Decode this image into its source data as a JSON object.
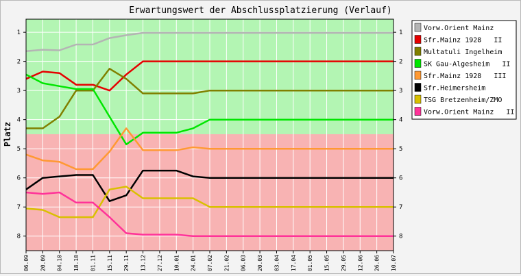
{
  "chart_data": {
    "type": "line",
    "title": "Erwartungswert der Abschlussplatzierung (Verlauf)",
    "ylabel": "Platz",
    "xlabel": "",
    "ylim": [
      0.55,
      8.5
    ],
    "y_reversed": true,
    "y_ticks": [
      1,
      2,
      3,
      4,
      5,
      6,
      7,
      8
    ],
    "bands": [
      {
        "from": 0.55,
        "to": 4.5,
        "color": "#b3f5b3"
      },
      {
        "from": 4.5,
        "to": 8.5,
        "color": "#f8b3b3"
      }
    ],
    "categories": [
      "06.09",
      "20.09",
      "04.10",
      "18.10",
      "01.11",
      "15.11",
      "29.11",
      "13.12",
      "27.12",
      "10.01",
      "24.01",
      "07.02",
      "21.02",
      "06.03",
      "20.03",
      "03.04",
      "17.04",
      "01.05",
      "15.05",
      "29.05",
      "12.06",
      "26.06",
      "10.07"
    ],
    "legend_position": "right",
    "series": [
      {
        "name": "Vorw.Orient Mainz",
        "color": "#b4b4b4",
        "values": [
          1.65,
          1.6,
          1.62,
          1.42,
          1.42,
          1.2,
          1.1,
          1.02,
          1.02,
          1.02,
          1.02,
          1.02,
          1.02,
          1.02,
          1.02,
          1.02,
          1.02,
          1.02,
          1.02,
          1.02,
          1.02,
          1.02,
          1.02
        ]
      },
      {
        "name": "Sfr.Mainz 1928   II",
        "color": "#e60000",
        "values": [
          2.6,
          2.35,
          2.4,
          2.8,
          2.8,
          3.0,
          2.45,
          2.0,
          2.0,
          2.0,
          2.0,
          2.0,
          2.0,
          2.0,
          2.0,
          2.0,
          2.0,
          2.0,
          2.0,
          2.0,
          2.0,
          2.0,
          2.0
        ]
      },
      {
        "name": "Multatuli Ingelheim",
        "color": "#808000",
        "values": [
          4.3,
          4.3,
          3.9,
          3.0,
          3.0,
          2.25,
          2.6,
          3.1,
          3.1,
          3.1,
          3.1,
          3.0,
          3.0,
          3.0,
          3.0,
          3.0,
          3.0,
          3.0,
          3.0,
          3.0,
          3.0,
          3.0,
          3.0
        ]
      },
      {
        "name": "SK Gau-Algesheim   II",
        "color": "#00e600",
        "values": [
          2.45,
          2.75,
          2.85,
          2.95,
          2.95,
          3.9,
          4.85,
          4.45,
          4.45,
          4.45,
          4.3,
          4.0,
          4.0,
          4.0,
          4.0,
          4.0,
          4.0,
          4.0,
          4.0,
          4.0,
          4.0,
          4.0,
          4.0
        ]
      },
      {
        "name": "Sfr.Mainz 1928   III",
        "color": "#ff9933",
        "values": [
          5.2,
          5.4,
          5.45,
          5.7,
          5.7,
          5.1,
          4.3,
          5.05,
          5.05,
          5.05,
          4.95,
          5.0,
          5.0,
          5.0,
          5.0,
          5.0,
          5.0,
          5.0,
          5.0,
          5.0,
          5.0,
          5.0,
          5.0
        ]
      },
      {
        "name": "Sfr.Heimersheim",
        "color": "#000000",
        "values": [
          6.4,
          6.0,
          5.95,
          5.9,
          5.9,
          6.8,
          6.6,
          5.75,
          5.75,
          5.75,
          5.95,
          6.0,
          6.0,
          6.0,
          6.0,
          6.0,
          6.0,
          6.0,
          6.0,
          6.0,
          6.0,
          6.0,
          6.0
        ]
      },
      {
        "name": "TSG Bretzenheim/ZMO",
        "color": "#d9c000",
        "values": [
          7.05,
          7.1,
          7.35,
          7.35,
          7.35,
          6.4,
          6.3,
          6.7,
          6.7,
          6.7,
          6.7,
          7.0,
          7.0,
          7.0,
          7.0,
          7.0,
          7.0,
          7.0,
          7.0,
          7.0,
          7.0,
          7.0,
          7.0
        ]
      },
      {
        "name": "Vorw.Orient Mainz   II",
        "color": "#ff3399",
        "values": [
          6.5,
          6.55,
          6.5,
          6.85,
          6.85,
          7.35,
          7.9,
          7.95,
          7.95,
          7.95,
          8.0,
          8.0,
          8.0,
          8.0,
          8.0,
          8.0,
          8.0,
          8.0,
          8.0,
          8.0,
          8.0,
          8.0,
          8.0
        ]
      }
    ]
  }
}
